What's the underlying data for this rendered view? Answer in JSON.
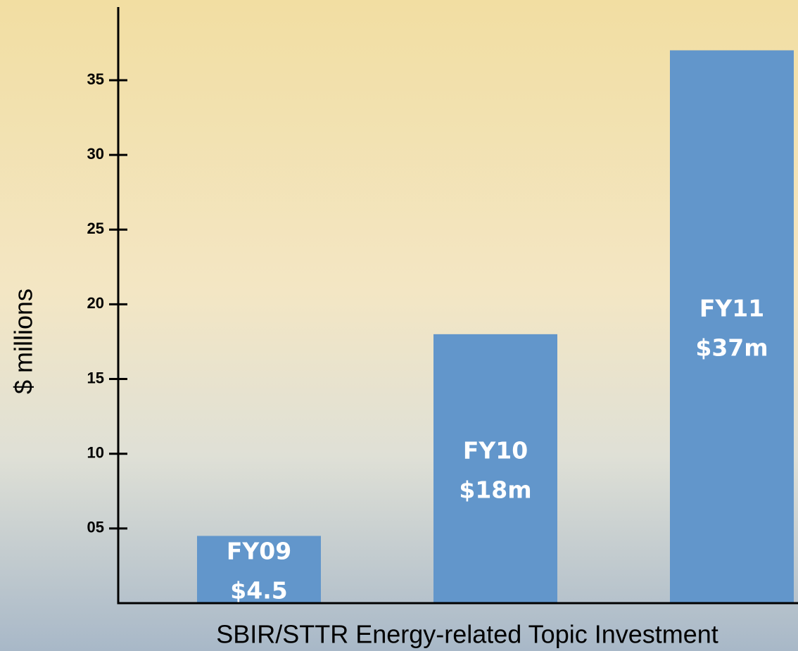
{
  "chart_data": {
    "type": "bar",
    "x_label": "SBIR/STTR Energy-related Topic Investment",
    "y_label": "$ millions",
    "categories": [
      "FY09",
      "FY10",
      "FY11"
    ],
    "values": [
      4.5,
      18,
      37
    ],
    "value_labels": [
      "$4.5",
      "$18m",
      "$37m"
    ],
    "color": "#6296cb",
    "ylim": [
      0,
      40
    ],
    "yticks": [
      {
        "value": 5,
        "label": "05"
      },
      10,
      15,
      20,
      25,
      30,
      35
    ]
  }
}
